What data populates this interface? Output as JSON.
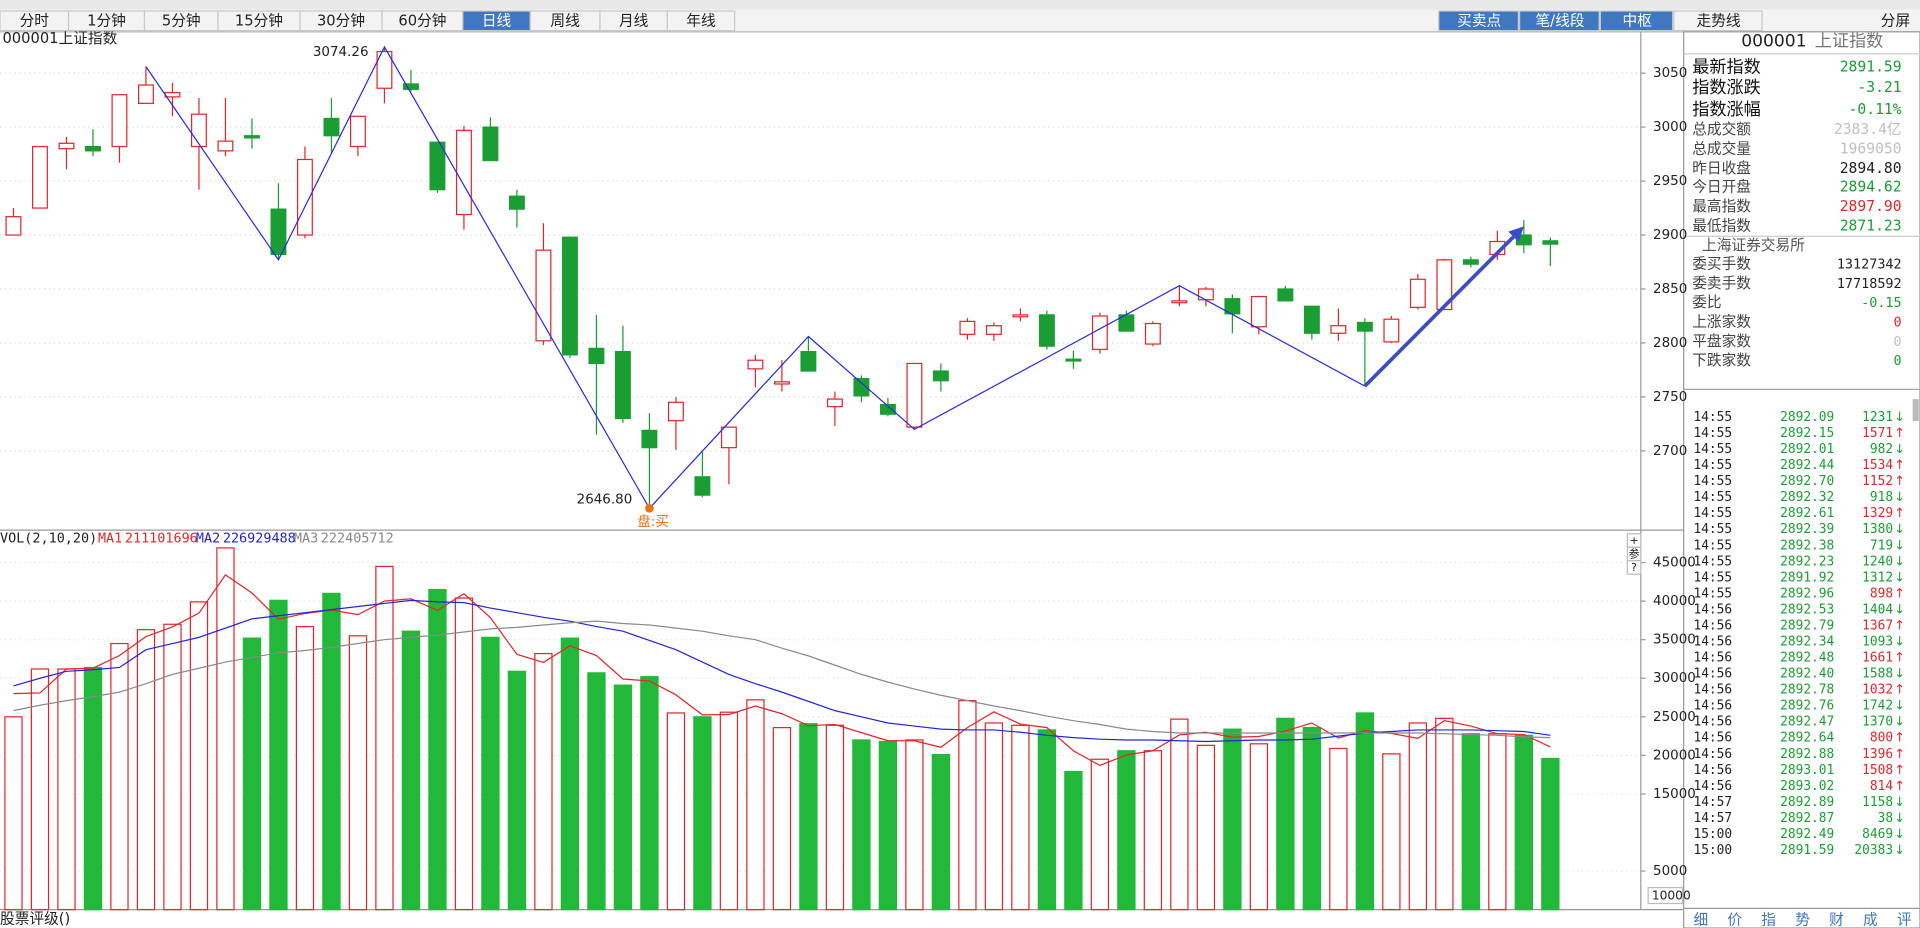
{
  "tabs": [
    "分时",
    "1分钟",
    "5分钟",
    "15分钟",
    "30分钟",
    "60分钟",
    "日线",
    "周线",
    "月线",
    "年线"
  ],
  "active_tab": 6,
  "tool_buttons": [
    {
      "label": "买卖点",
      "active": true
    },
    {
      "label": "笔/线段",
      "active": true
    },
    {
      "label": "中枢",
      "active": true
    },
    {
      "label": "走势线",
      "active": false
    }
  ],
  "split_button": "分屏",
  "chart_data": [
    {
      "type": "candlestick",
      "title": "000001上证指数",
      "colors": {
        "up": "#e3262b",
        "down": "#1a9e33",
        "zigzag": "#2a2ae0",
        "arrow": "#3b4cc8",
        "marker": "#f07010"
      },
      "candles": {
        "open": [
          2900,
          2925,
          2980,
          2982,
          2982,
          3022,
          3028,
          2982,
          2978,
          2992,
          2924,
          2900,
          3008,
          2982,
          3036,
          3040,
          2986,
          2919,
          3000,
          2936,
          2802,
          2898,
          2795,
          2792,
          2719,
          2728,
          2676,
          2703,
          2776,
          2762,
          2792,
          2741,
          2767,
          2743,
          2722,
          2774,
          2808,
          2808,
          2825,
          2826,
          2785,
          2794,
          2826,
          2799,
          2838,
          2840,
          2841,
          2815,
          2850,
          2834,
          2809,
          2819,
          2801,
          2833,
          2831,
          2877,
          2882,
          2900,
          2894.62
        ],
        "high": [
          2925,
          2982,
          2991,
          2998,
          3030,
          3056,
          3041,
          3027,
          3027,
          3008,
          2948,
          2982,
          3027,
          3010,
          3074.26,
          3053,
          2986,
          3001,
          3009,
          2942,
          2911,
          2898,
          2826,
          2816,
          2735,
          2750,
          2700,
          2722,
          2789,
          2784,
          2806,
          2755,
          2770,
          2749,
          2781,
          2781,
          2823,
          2819,
          2832,
          2830,
          2793,
          2828,
          2830,
          2820,
          2853,
          2852,
          2845,
          2843,
          2853,
          2834,
          2832,
          2823,
          2825,
          2864,
          2878,
          2880,
          2904,
          2914,
          2897.9
        ],
        "low": [
          2900,
          2925,
          2961,
          2973,
          2967,
          3022,
          3010,
          2942,
          2973,
          2980,
          2877,
          2897,
          2976,
          2973,
          3022,
          3033,
          2939,
          2905,
          2969,
          2907,
          2798,
          2786,
          2715,
          2726,
          2646.8,
          2701,
          2657,
          2669,
          2759,
          2755,
          2774,
          2723,
          2745,
          2732,
          2720,
          2755,
          2803,
          2802,
          2820,
          2794,
          2776,
          2790,
          2811,
          2797,
          2834,
          2834,
          2809,
          2808,
          2839,
          2803,
          2802,
          2760,
          2800,
          2831,
          2831,
          2870,
          2877,
          2883,
          2871.23
        ],
        "close": [
          2917,
          2982,
          2985,
          2978,
          3030,
          3039,
          3032,
          3012,
          2987,
          2990,
          2882,
          2970,
          2992,
          3010,
          3070,
          3035,
          2942,
          2997,
          2969,
          2924,
          2886,
          2789,
          2781,
          2730,
          2703,
          2745,
          2659,
          2722,
          2784,
          2764,
          2774,
          2748,
          2751,
          2734,
          2781,
          2765,
          2820,
          2816,
          2826,
          2797,
          2784,
          2825,
          2811,
          2818,
          2839,
          2850,
          2827,
          2843,
          2839,
          2809,
          2816,
          2811,
          2822,
          2859,
          2877,
          2873,
          2894,
          2891,
          2891.59
        ]
      },
      "zigzag": {
        "x": [
          5,
          10,
          14,
          24,
          30,
          34,
          44,
          51
        ],
        "y": [
          3056,
          2877,
          3074.26,
          2646.8,
          2806,
          2720,
          2853,
          2760
        ]
      },
      "arrow": {
        "x": [
          51,
          57
        ],
        "y": [
          2760,
          2908
        ]
      },
      "annotations": [
        {
          "text": "3074.26",
          "x": 14,
          "y": 3074.26
        },
        {
          "text": "2646.80",
          "x": 24,
          "y": 2646.8
        },
        {
          "text": "盘:买",
          "x": 24,
          "y": 2646.8
        }
      ],
      "ylim": [
        2630,
        3086
      ],
      "yticks": [
        2700,
        2750,
        2800,
        2850,
        2900,
        2950,
        3000,
        3050
      ],
      "grid": true
    },
    {
      "type": "bar",
      "title": "VOL(2,10,20)",
      "values": [
        25000,
        31200,
        31200,
        31400,
        34500,
        36300,
        37000,
        39900,
        46900,
        35200,
        40100,
        36700,
        41000,
        35500,
        44500,
        36100,
        41500,
        40400,
        35300,
        30900,
        33200,
        35200,
        30700,
        29100,
        30200,
        25500,
        25000,
        25600,
        27200,
        23600,
        24100,
        23900,
        22000,
        21800,
        22000,
        20100,
        27100,
        24200,
        23900,
        23300,
        17900,
        19500,
        20600,
        20600,
        24700,
        21300,
        23400,
        21500,
        24800,
        23600,
        20900,
        25500,
        20200,
        24200,
        24800,
        22800,
        22800,
        22600,
        19600
      ],
      "colors": {
        "up": "#e3262b",
        "down": "#22b83a"
      },
      "series": [
        {
          "name": "MA1",
          "legend_value": 211101696,
          "color": "#e3262b",
          "values": [
            28000,
            28100,
            31200,
            31300,
            32950,
            35400,
            36650,
            38450,
            43400,
            41050,
            37650,
            38400,
            38850,
            38250,
            40000,
            40300,
            38800,
            40950,
            37850,
            33100,
            32050,
            34200,
            32950,
            29900,
            29650,
            27850,
            25250,
            25300,
            26400,
            25400,
            23850,
            24000,
            22950,
            21900,
            21900,
            21050,
            23600,
            25650,
            24050,
            23600,
            20600,
            18700,
            20050,
            20600,
            22650,
            23000,
            22350,
            22450,
            23150,
            24200,
            22250,
            23200,
            22850,
            22200,
            24500,
            23800,
            22800,
            22700,
            21100
          ]
        },
        {
          "name": "MA2",
          "legend_value": 226929488,
          "color": "#2424d8",
          "values": [
            29000,
            30000,
            30900,
            31100,
            31400,
            33700,
            34500,
            35300,
            36500,
            37700,
            38100,
            38500,
            38900,
            39300,
            39700,
            40100,
            39900,
            39800,
            39100,
            38500,
            37900,
            37400,
            36700,
            36100,
            34900,
            33700,
            32100,
            30500,
            29300,
            28200,
            27000,
            25800,
            25000,
            24200,
            23800,
            23400,
            23300,
            23300,
            23000,
            22600,
            22300,
            22100,
            22000,
            22000,
            21900,
            21800,
            21900,
            22000,
            22000,
            22100,
            22500,
            22900,
            23100,
            23300,
            23300,
            23300,
            23200,
            23100,
            22600
          ]
        },
        {
          "name": "MA3",
          "legend_value": 222405712,
          "color": "#8a8a8a",
          "values": [
            25800,
            26500,
            27100,
            27600,
            28200,
            29300,
            30500,
            31300,
            32100,
            32700,
            33300,
            33600,
            34000,
            34500,
            35000,
            35300,
            35600,
            36000,
            36400,
            36600,
            36900,
            37200,
            37400,
            37100,
            36900,
            36500,
            36100,
            35500,
            35000,
            33900,
            32900,
            31700,
            30500,
            29500,
            28600,
            27800,
            27100,
            26400,
            25800,
            25100,
            24500,
            24000,
            23400,
            23100,
            22900,
            22900,
            22900,
            22900,
            22900,
            22900,
            22900,
            22900,
            22900,
            22900,
            22800,
            22700,
            22600,
            22400,
            22300
          ]
        }
      ],
      "ylim": [
        0,
        50000
      ],
      "yticks": [
        5000,
        15000,
        20000,
        25000,
        30000,
        35000,
        40000,
        45000
      ],
      "unit_label": "10000",
      "grid": true,
      "side_buttons": [
        "+",
        "参",
        "?"
      ]
    }
  ],
  "quote_panel": {
    "code": "000001",
    "name": "上证指数",
    "stats": [
      {
        "label": "最新指数",
        "value": "2891.59",
        "color": "#1a9e33",
        "big": true
      },
      {
        "label": "指数涨跌",
        "value": "-3.21",
        "color": "#1a9e33",
        "big": true
      },
      {
        "label": "指数涨幅",
        "value": "-0.11%",
        "color": "#1a9e33",
        "big": true
      },
      {
        "label": "总成交额",
        "value": "2383.4亿",
        "color": "#c0c0c0",
        "big": false
      },
      {
        "label": "总成交量",
        "value": "1969050",
        "color": "#c0c0c0",
        "big": false
      },
      {
        "label": "昨日收盘",
        "value": "2894.80",
        "color": "#222222",
        "big": false
      },
      {
        "label": "今日开盘",
        "value": "2894.62",
        "color": "#1a9e33",
        "big": false
      },
      {
        "label": "最高指数",
        "value": "2897.90",
        "color": "#e3262b",
        "big": false
      },
      {
        "label": "最低指数",
        "value": "2871.23",
        "color": "#1a9e33",
        "big": false
      }
    ],
    "exchange": "上海证券交易所",
    "orders": [
      {
        "label": "委买手数",
        "value": "13127342",
        "color": "#222222"
      },
      {
        "label": "委卖手数",
        "value": "17718592",
        "color": "#222222"
      },
      {
        "label": "委比",
        "value": "-0.15",
        "color": "#1a9e33"
      },
      {
        "label": "上涨家数",
        "value": "0",
        "color": "#e3262b"
      },
      {
        "label": "平盘家数",
        "value": "0",
        "color": "#c0c0c0"
      },
      {
        "label": "下跌家数",
        "value": "0",
        "color": "#1a9e33"
      }
    ],
    "trades": [
      {
        "time": "14:55",
        "price": "2892.09",
        "volume": 1231,
        "dir": "↓"
      },
      {
        "time": "14:55",
        "price": "2892.15",
        "volume": 1571,
        "dir": "↑"
      },
      {
        "time": "14:55",
        "price": "2892.01",
        "volume": 982,
        "dir": "↓"
      },
      {
        "time": "14:55",
        "price": "2892.44",
        "volume": 1534,
        "dir": "↑"
      },
      {
        "time": "14:55",
        "price": "2892.70",
        "volume": 1152,
        "dir": "↑"
      },
      {
        "time": "14:55",
        "price": "2892.32",
        "volume": 918,
        "dir": "↓"
      },
      {
        "time": "14:55",
        "price": "2892.61",
        "volume": 1329,
        "dir": "↑"
      },
      {
        "time": "14:55",
        "price": "2892.39",
        "volume": 1380,
        "dir": "↓"
      },
      {
        "time": "14:55",
        "price": "2892.38",
        "volume": 719,
        "dir": "↓"
      },
      {
        "time": "14:55",
        "price": "2892.23",
        "volume": 1240,
        "dir": "↓"
      },
      {
        "time": "14:55",
        "price": "2891.92",
        "volume": 1312,
        "dir": "↓"
      },
      {
        "time": "14:55",
        "price": "2892.96",
        "volume": 898,
        "dir": "↑"
      },
      {
        "time": "14:56",
        "price": "2892.53",
        "volume": 1404,
        "dir": "↓"
      },
      {
        "time": "14:56",
        "price": "2892.79",
        "volume": 1367,
        "dir": "↑"
      },
      {
        "time": "14:56",
        "price": "2892.34",
        "volume": 1093,
        "dir": "↓"
      },
      {
        "time": "14:56",
        "price": "2892.48",
        "volume": 1661,
        "dir": "↑"
      },
      {
        "time": "14:56",
        "price": "2892.40",
        "volume": 1588,
        "dir": "↓"
      },
      {
        "time": "14:56",
        "price": "2892.78",
        "volume": 1032,
        "dir": "↑"
      },
      {
        "time": "14:56",
        "price": "2892.76",
        "volume": 1742,
        "dir": "↓"
      },
      {
        "time": "14:56",
        "price": "2892.47",
        "volume": 1370,
        "dir": "↓"
      },
      {
        "time": "14:56",
        "price": "2892.64",
        "volume": 800,
        "dir": "↑"
      },
      {
        "time": "14:56",
        "price": "2892.88",
        "volume": 1396,
        "dir": "↑"
      },
      {
        "time": "14:56",
        "price": "2893.01",
        "volume": 1508,
        "dir": "↑"
      },
      {
        "time": "14:56",
        "price": "2893.02",
        "volume": 814,
        "dir": "↑"
      },
      {
        "time": "14:57",
        "price": "2892.89",
        "volume": 1158,
        "dir": "↓"
      },
      {
        "time": "14:57",
        "price": "2892.87",
        "volume": 38,
        "dir": "↓"
      },
      {
        "time": "15:00",
        "price": "2892.49",
        "volume": 8469,
        "dir": "↓"
      },
      {
        "time": "15:00",
        "price": "2891.59",
        "volume": 20383,
        "dir": "↓"
      }
    ],
    "bottom_tabs": [
      "细",
      "价",
      "指",
      "势",
      "财",
      "成",
      "评"
    ]
  },
  "footer": "股票评级()"
}
